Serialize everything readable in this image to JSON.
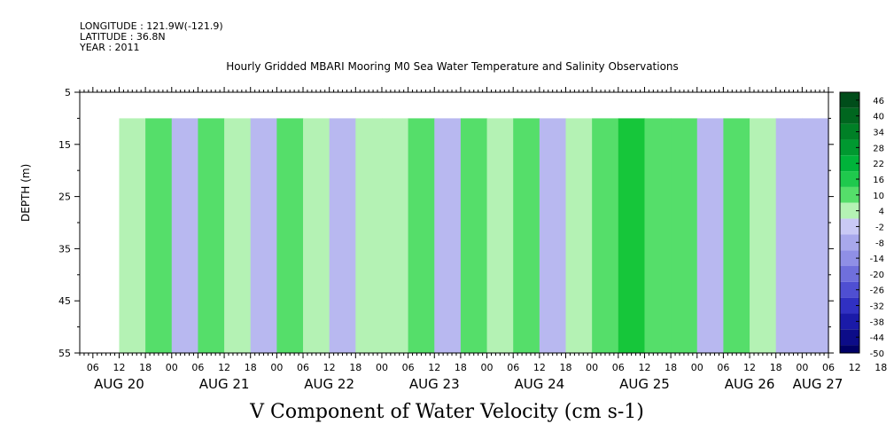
{
  "header": {
    "longitude": "LONGITUDE : 121.9W(-121.9)",
    "latitude": "LATITUDE : 36.8N",
    "year": "YEAR : 2011",
    "title": "Hourly Gridded MBARI Mooring M0 Sea Water Temperature and Salinity Observations"
  },
  "colors": {
    "positive_light": "#b4f2b4",
    "positive_mid": "#55de6a",
    "positive_strong": "#16c63a",
    "negative_light": "#b8b8f0",
    "negative_mid": "#8f8fe6",
    "background": "#ffffff"
  },
  "chart_data": {
    "type": "heatmap",
    "title": "V Component of Water Velocity (cm s-1)",
    "ylabel": "DEPTH (m)",
    "xlabel": "",
    "y_range": [
      5,
      55
    ],
    "y_inverted": true,
    "y_ticks": [
      "5",
      "15",
      "25",
      "35",
      "45",
      "55"
    ],
    "x_range_hours": [
      "AUG 20 03:00",
      "AUG 27 06:00"
    ],
    "x_hour_ticks": [
      "06",
      "12",
      "18",
      "00",
      "06",
      "12",
      "18",
      "00",
      "06",
      "12",
      "18",
      "00",
      "06",
      "12",
      "18",
      "00",
      "06",
      "12",
      "18",
      "00",
      "06",
      "12",
      "18",
      "00",
      "06",
      "12",
      "18",
      "00",
      "06",
      "12",
      "18",
      "00"
    ],
    "x_day_labels": [
      "AUG 20",
      "AUG 21",
      "AUG 22",
      "AUG 23",
      "AUG 24",
      "AUG 25",
      "AUG 26",
      "AUG 27"
    ],
    "data_depth_range": [
      10,
      55
    ],
    "data_time_range": [
      "AUG 20 12:00",
      "AUG 27 06:00"
    ],
    "colorbar_labels": [
      "46",
      "40",
      "34",
      "28",
      "22",
      "16",
      "10",
      "4",
      "-2",
      "-8",
      "-14",
      "-20",
      "-26",
      "-32",
      "-38",
      "-44",
      "-50"
    ],
    "colorbar_range": [
      -50,
      49
    ],
    "column_profile": [
      {
        "day": 20,
        "hour": 12,
        "value": 6
      },
      {
        "day": 20,
        "hour": 18,
        "value": 8
      },
      {
        "day": 21,
        "hour": 0,
        "value": -4
      },
      {
        "day": 21,
        "hour": 6,
        "value": 14
      },
      {
        "day": 21,
        "hour": 12,
        "value": 4
      },
      {
        "day": 21,
        "hour": 18,
        "value": -6
      },
      {
        "day": 22,
        "hour": 0,
        "value": 12
      },
      {
        "day": 22,
        "hour": 6,
        "value": 6
      },
      {
        "day": 22,
        "hour": 12,
        "value": -3
      },
      {
        "day": 22,
        "hour": 18,
        "value": 5
      },
      {
        "day": 23,
        "hour": 0,
        "value": 2
      },
      {
        "day": 23,
        "hour": 6,
        "value": 14
      },
      {
        "day": 23,
        "hour": 12,
        "value": -5
      },
      {
        "day": 23,
        "hour": 18,
        "value": 8
      },
      {
        "day": 24,
        "hour": 0,
        "value": 3
      },
      {
        "day": 24,
        "hour": 6,
        "value": 12
      },
      {
        "day": 24,
        "hour": 12,
        "value": -4
      },
      {
        "day": 24,
        "hour": 18,
        "value": 6
      },
      {
        "day": 25,
        "hour": 0,
        "value": 10
      },
      {
        "day": 25,
        "hour": 6,
        "value": 18
      },
      {
        "day": 25,
        "hour": 12,
        "value": 14
      },
      {
        "day": 25,
        "hour": 18,
        "value": 8
      },
      {
        "day": 26,
        "hour": 0,
        "value": -3
      },
      {
        "day": 26,
        "hour": 6,
        "value": 10
      },
      {
        "day": 26,
        "hour": 12,
        "value": 6
      },
      {
        "day": 26,
        "hour": 18,
        "value": -4
      },
      {
        "day": 27,
        "hour": 0,
        "value": -6
      },
      {
        "day": 27,
        "hour": 6,
        "value": -5
      }
    ]
  }
}
